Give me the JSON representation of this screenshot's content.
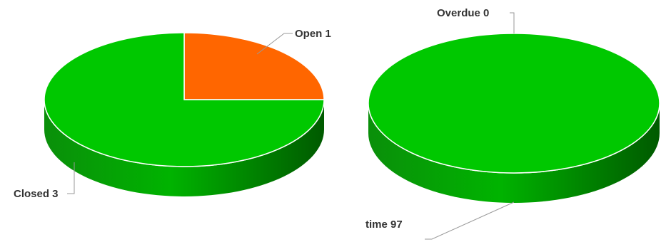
{
  "chart_data": [
    {
      "type": "pie",
      "style": "3d",
      "slices": [
        {
          "label": "Open",
          "value": 1,
          "color": "#ff6600",
          "display": "Open 1"
        },
        {
          "label": "Closed",
          "value": 3,
          "color": "#00c800",
          "display": "Closed 3"
        }
      ]
    },
    {
      "type": "pie",
      "style": "3d",
      "slices": [
        {
          "label": "Overdue",
          "value": 0,
          "color": "#ff6600",
          "display": "Overdue 0"
        },
        {
          "label": "On time",
          "value": 97,
          "color": "#00c800",
          "display": "time 97"
        }
      ]
    }
  ]
}
